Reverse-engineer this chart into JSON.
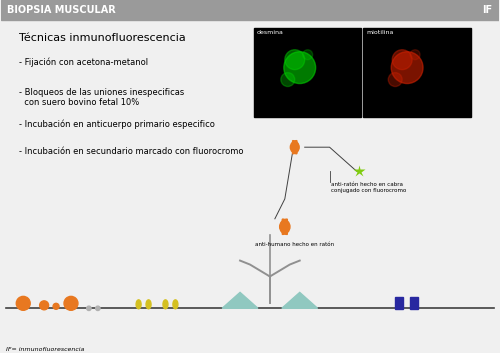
{
  "title_left": "BIOPSIA MUSCULAR",
  "title_right": "IF",
  "title_bg": "#9a9a9a",
  "title_text_color": "white",
  "content_bg": "#f0f0f0",
  "heading": "Técnicas inmunofluorescencia",
  "bullets": [
    "- Fijación con acetona-metanol",
    "- Bloqueos de las uniones inespecificas\n  con suero bovino fetal 10%",
    "- Incubación en anticuerpo primario especifico",
    "- Incubación en secundario marcado con fluorocromo"
  ],
  "img1_label": "desmina",
  "img2_label": "miotilina",
  "label1": "anti-ratón hecho en cabra\nconjugado con fluorocromo",
  "label2": "anti-humano hecho en ratón",
  "footer": "IF= inmunofluorescencia",
  "orange_color": "#e87820",
  "yellow_color": "#d4c020",
  "blue_color": "#2828a0",
  "teal_color": "#90c8c0",
  "green_color": "#80cc10",
  "gray_color": "#b0b0b0"
}
